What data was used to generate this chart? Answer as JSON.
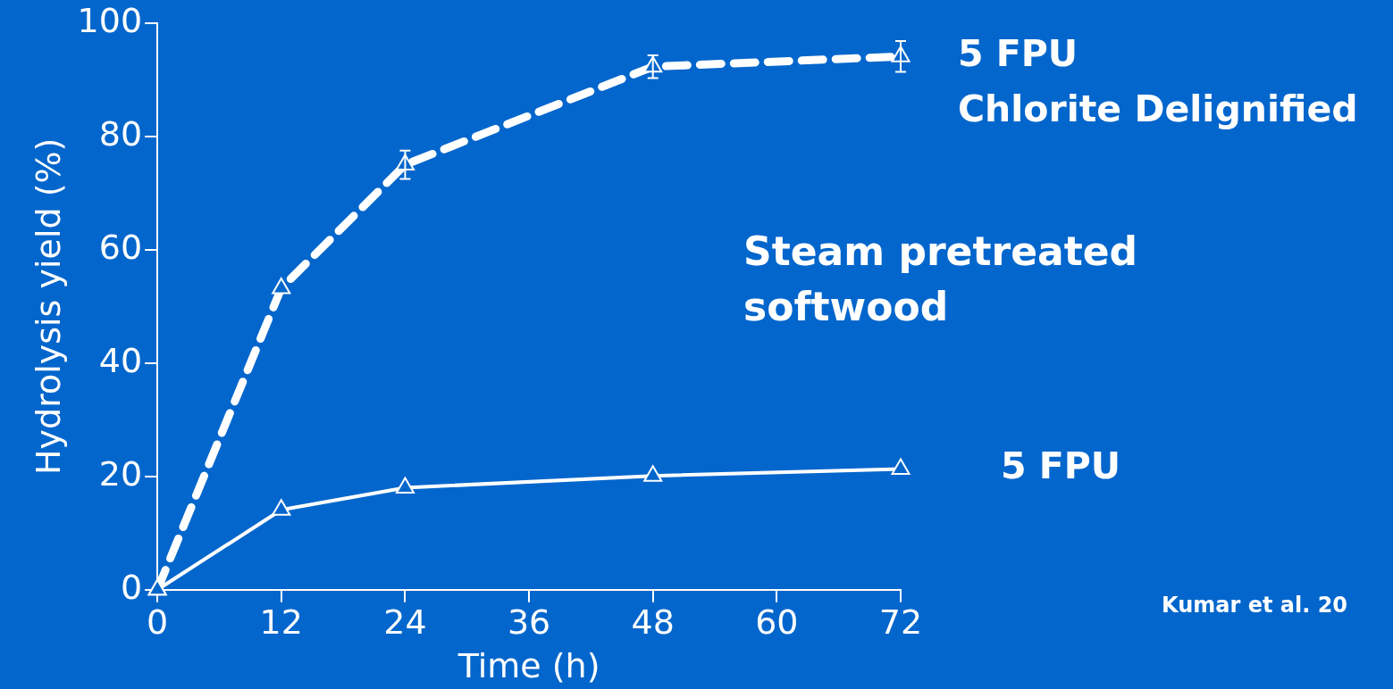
{
  "chart_data": {
    "type": "line",
    "xlabel": "Time (h)",
    "ylabel": "Hydrolysis yield (%)",
    "x": [
      0,
      12,
      24,
      48,
      72
    ],
    "series": [
      {
        "name": "5 FPU\nChlorite Delignified",
        "color": "#ffffff",
        "values": [
          0,
          53.2,
          75,
          92.3,
          94.1
        ],
        "errors": [
          null,
          null,
          2.5,
          2,
          2.7
        ],
        "line_style": "dashed"
      },
      {
        "name": "5 FPU",
        "color": "#ffffff",
        "values": [
          0,
          14.1,
          18,
          20.1,
          21.3
        ],
        "line_style": "solid"
      }
    ],
    "xlim": [
      0,
      72
    ],
    "xticks": [
      0,
      12,
      24,
      36,
      48,
      60,
      72
    ],
    "ylim": [
      0,
      100
    ],
    "yticks": [
      0,
      20,
      40,
      60,
      80,
      100
    ],
    "grid": false,
    "legend": false,
    "marker": "triangle",
    "annotations": [
      "Steam pretreated\nsoftwood",
      "Kumar et al. 20"
    ]
  }
}
